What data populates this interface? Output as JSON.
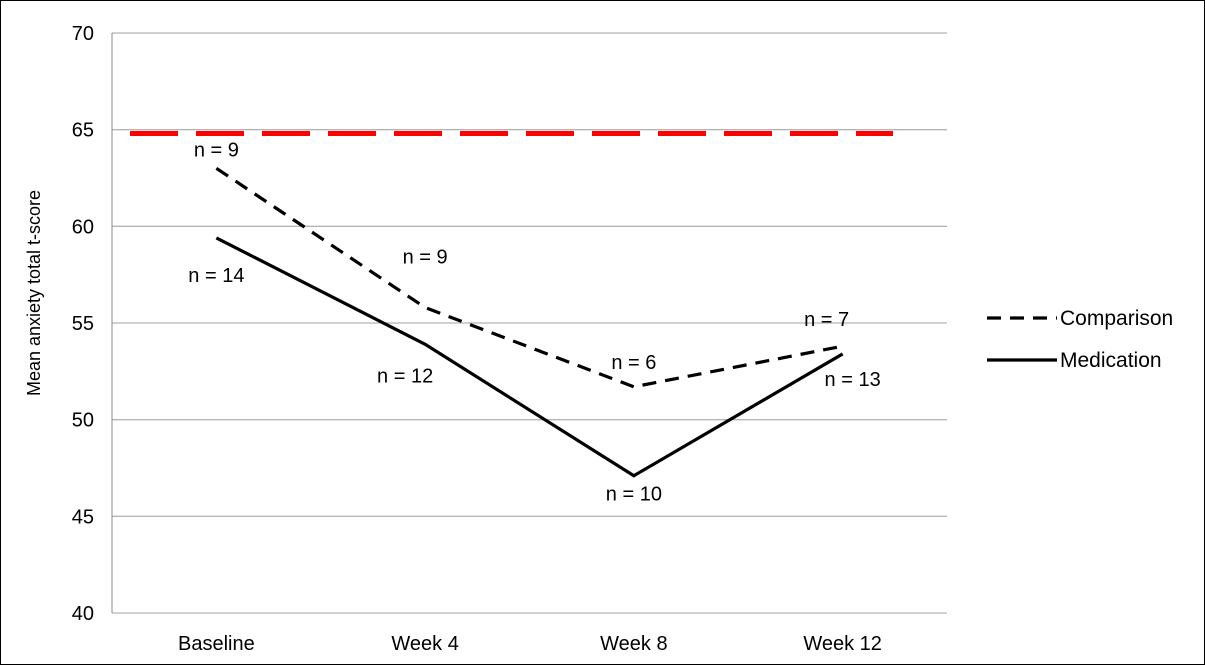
{
  "chart_data": {
    "type": "line",
    "title": "",
    "xlabel": "",
    "ylabel": "Mean anxiety total t-score",
    "categories": [
      "Baseline",
      "Week 4",
      "Week 8",
      "Week 12"
    ],
    "ylim": [
      40,
      70
    ],
    "yticks": [
      40,
      45,
      50,
      55,
      60,
      65,
      70
    ],
    "grid": true,
    "legend_position": "right",
    "series": [
      {
        "name": "Comparison",
        "style": "dashed",
        "color": "#000000",
        "values": [
          63.0,
          55.8,
          51.7,
          53.8
        ],
        "n_labels": [
          "n = 9",
          "n = 9",
          "n = 6",
          "n = 7"
        ]
      },
      {
        "name": "Medication",
        "style": "solid",
        "color": "#000000",
        "values": [
          59.4,
          53.9,
          47.1,
          53.4
        ],
        "n_labels": [
          "n = 14",
          "n = 12",
          "n = 10",
          "n = 13"
        ]
      }
    ],
    "reference_line": {
      "value": 64.8,
      "color": "#ff0000",
      "style": "dashed"
    }
  }
}
